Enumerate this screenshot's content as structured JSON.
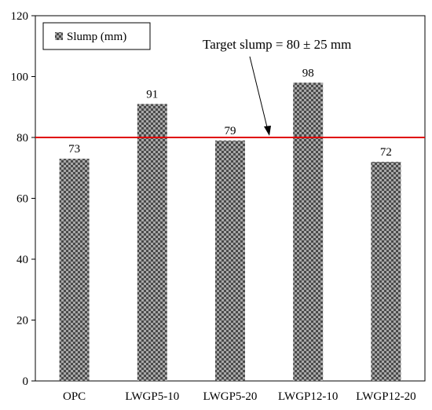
{
  "chart_data": {
    "type": "bar",
    "categories": [
      "OPC",
      "LWGP5-10",
      "LWGP5-20",
      "LWGP12-10",
      "LWGP12-20"
    ],
    "series": [
      {
        "name": "Slump (mm)",
        "values": [
          73,
          91,
          79,
          98,
          72
        ]
      }
    ],
    "data_labels": [
      "73",
      "91",
      "79",
      "98",
      "72"
    ],
    "ylim": [
      0,
      120
    ],
    "yticks": [
      0,
      20,
      40,
      60,
      80,
      100,
      120
    ],
    "ytick_labels": [
      "0",
      "20",
      "40",
      "60",
      "80",
      "100",
      "120"
    ],
    "grid": false,
    "legend": {
      "entry": "Slump (mm)",
      "position": "top-left"
    },
    "reference_line": {
      "value": 80,
      "color": "#e00000"
    },
    "annotation": {
      "text": "Target slump = 80  ± 25 mm",
      "points_to": "reference line"
    },
    "bar_pattern": "checkerboard",
    "colors": {
      "bar_dark": "#4a4a4a",
      "bar_light": "#a8a8a8",
      "reference": "#e00000"
    }
  }
}
